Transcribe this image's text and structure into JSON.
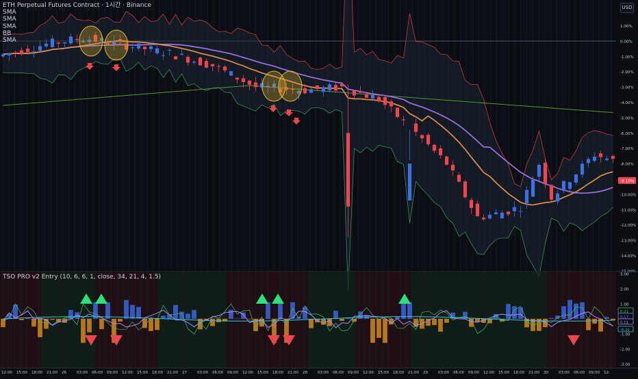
{
  "header": {
    "title": "ETH Perpetual Futures Contract · 1시간 · Binance",
    "indicators": [
      "SMA",
      "SMA",
      "SMA",
      "BB",
      "SMA"
    ]
  },
  "currency_button": "USD",
  "oscillator": {
    "title": "TSO PRO v2 Entry (10, 6, 6, 1, close, 34, 21, 4, 1.5)"
  },
  "price_axis": [
    "1.00%",
    "0.00%",
    "-1.00%",
    "-2.00%",
    "-3.00%",
    "-4.00%",
    "-5.00%",
    "-6.00%",
    "-7.00%",
    "-8.00%",
    "-9.00%",
    "-10.00%",
    "-11.00%",
    "-12.00%",
    "-13.00%",
    "-14.00%",
    "-15.00%"
  ],
  "current_price_label": "-9.10%",
  "osc_axis": [
    "3.00",
    "2.00",
    "1.00",
    "-1.00",
    "-2.00",
    "-3.00"
  ],
  "osc_badges": [
    "0.21",
    "0.17",
    "0.11",
    "-0.21"
  ],
  "time_axis": [
    "12:00",
    "15:00",
    "18:00",
    "21:00",
    "26",
    "03:00",
    "06:00",
    "09:00",
    "12:00",
    "15:00",
    "18:00",
    "21:00",
    "27",
    "03:00",
    "06:00",
    "09:00",
    "12:00",
    "15:00",
    "18:00",
    "21:00",
    "28",
    "03:00",
    "06:00",
    "09:00",
    "12:00",
    "15:00",
    "18:00",
    "21:00",
    "29",
    "03:00",
    "06:00",
    "09:00",
    "12:00",
    "15:00",
    "18:00",
    "21:00",
    "30",
    "03:00",
    "06:00",
    "09:00",
    "12:"
  ],
  "colors": {
    "background": "#0b0d12",
    "up": "#3f6fe0",
    "down": "#f0444f",
    "sma_fast": "#d98a4c",
    "sma_mid": "#9a6ddb",
    "sma_slow": "#4c9a3a",
    "bb": "#c03a48",
    "signal_buy": "#2fe07a",
    "signal_sell": "#f0444f",
    "histo_pos": "#3a62d0",
    "histo_neg": "#c8811e"
  }
}
